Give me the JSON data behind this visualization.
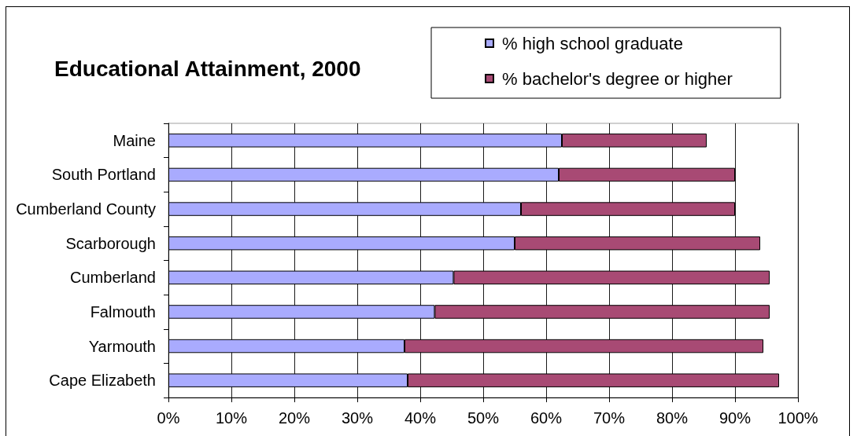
{
  "chart_data": {
    "type": "bar",
    "orientation": "horizontal",
    "stacked": true,
    "title": "Educational Attainment, 2000",
    "categories": [
      "Maine",
      "South Portland",
      "Cumberland County",
      "Scarborough",
      "Cumberland",
      "Falmouth",
      "Yarmouth",
      "Cape Elizabeth"
    ],
    "series": [
      {
        "name": "% high school graduate",
        "color": "#a9abfe",
        "values": [
          62.5,
          62,
          56,
          55,
          45.3,
          42.3,
          37.5,
          38
        ]
      },
      {
        "name": "% bachelor's degree or higher",
        "color": "#a84a74",
        "values": [
          23,
          28,
          34,
          39,
          50.2,
          53.2,
          57,
          59
        ]
      }
    ],
    "xlim": [
      0,
      100
    ],
    "xticks": [
      {
        "value": 0,
        "label": "0%"
      },
      {
        "value": 10,
        "label": "10%"
      },
      {
        "value": 20,
        "label": "20%"
      },
      {
        "value": 30,
        "label": "30%"
      },
      {
        "value": 40,
        "label": "40%"
      },
      {
        "value": 50,
        "label": "50%"
      },
      {
        "value": 60,
        "label": "60%"
      },
      {
        "value": 70,
        "label": "70%"
      },
      {
        "value": 80,
        "label": "80%"
      },
      {
        "value": 90,
        "label": "90%"
      },
      {
        "value": 100,
        "label": "100%"
      }
    ],
    "grid": "x",
    "legend": "top right"
  }
}
